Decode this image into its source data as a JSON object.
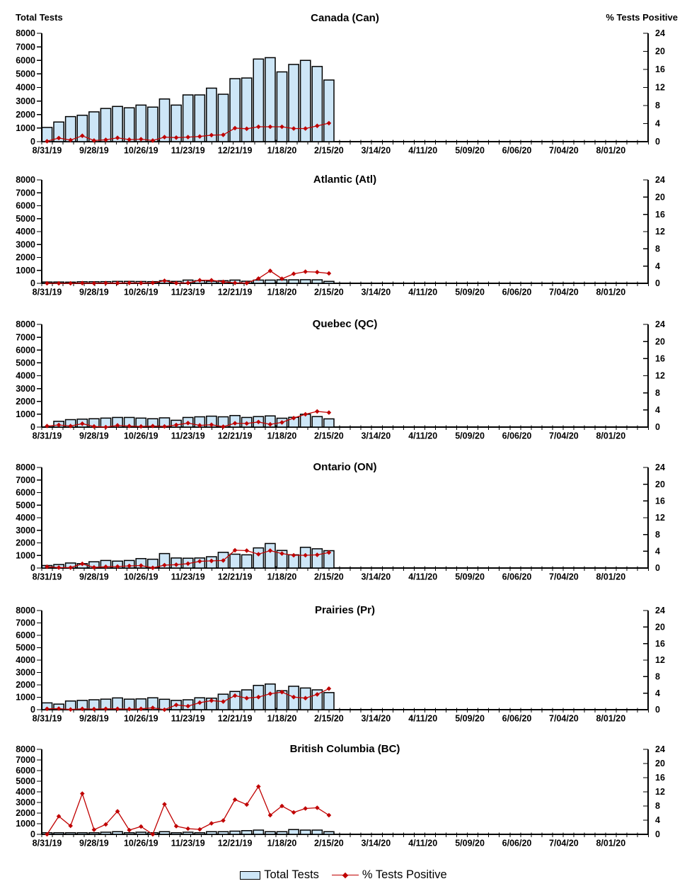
{
  "axes": {
    "left_title": "Total Tests",
    "right_title": "% Tests Positive",
    "left_ticks": [
      "8000",
      "7000",
      "6000",
      "5000",
      "4000",
      "3000",
      "2000",
      "1000",
      "0"
    ],
    "right_ticks": [
      "24",
      "20",
      "16",
      "12",
      "8",
      "4",
      "0"
    ],
    "x_tick_labels": [
      "8/31/19",
      "9/28/19",
      "10/26/19",
      "11/23/19",
      "12/21/19",
      "1/18/20",
      "2/15/20",
      "3/14/20",
      "4/11/20",
      "5/09/20",
      "6/06/20",
      "7/04/20",
      "8/01/20"
    ],
    "left_max": 8000,
    "right_max": 24
  },
  "legend": {
    "bar_label": "Total Tests",
    "line_label": "% Tests Positive"
  },
  "colors": {
    "bar_fill": "#CDE6F7",
    "bar_stroke": "#000000",
    "line": "#C00000",
    "text": "#000000"
  },
  "chart_data": {
    "type": "combo_bar_line",
    "x_is_weekly": true,
    "categories": [
      "8/31/19",
      "9/07/19",
      "9/14/19",
      "9/21/19",
      "9/28/19",
      "10/05/19",
      "10/12/19",
      "10/19/19",
      "10/26/19",
      "11/02/19",
      "11/09/19",
      "11/16/19",
      "11/23/19",
      "11/30/19",
      "12/07/19",
      "12/14/19",
      "12/21/19",
      "12/28/19",
      "1/04/20",
      "1/11/20",
      "1/18/20",
      "1/25/20",
      "2/01/20",
      "2/08/20",
      "2/15/20"
    ],
    "left_series_name": "Total Tests",
    "right_series_name": "% Tests Positive",
    "left_ylim": [
      0,
      8000
    ],
    "right_ylim": [
      0,
      24
    ],
    "charts": [
      {
        "title": "Canada (Can)",
        "total_tests": [
          1050,
          1450,
          1850,
          1950,
          2200,
          2450,
          2600,
          2500,
          2700,
          2550,
          3150,
          2700,
          3450,
          3450,
          3950,
          3500,
          4650,
          4700,
          6100,
          6200,
          5150,
          5700,
          6000,
          5550,
          4550
        ],
        "pct_positive": [
          0.1,
          0.8,
          0.35,
          1.3,
          0.25,
          0.4,
          0.85,
          0.45,
          0.55,
          0.25,
          1.0,
          0.9,
          1.0,
          1.15,
          1.45,
          1.5,
          3.0,
          2.85,
          3.3,
          3.3,
          3.3,
          2.9,
          2.9,
          3.5,
          4.1
        ]
      },
      {
        "title": "Atlantic (Atl)",
        "total_tests": [
          100,
          100,
          90,
          120,
          120,
          130,
          150,
          150,
          140,
          130,
          200,
          150,
          250,
          200,
          160,
          200,
          250,
          160,
          250,
          250,
          270,
          270,
          280,
          270,
          150
        ],
        "pct_positive": [
          0,
          0,
          0,
          0.05,
          0,
          0.05,
          0.05,
          0.1,
          0.05,
          0.1,
          0.6,
          0.05,
          0.1,
          0.7,
          0.7,
          0.35,
          0.1,
          0.05,
          1.1,
          2.9,
          1.05,
          2.2,
          2.7,
          2.6,
          2.3
        ]
      },
      {
        "title": "Quebec (QC)",
        "total_tests": [
          0,
          450,
          580,
          620,
          650,
          700,
          750,
          750,
          700,
          650,
          720,
          530,
          750,
          800,
          850,
          800,
          900,
          750,
          820,
          870,
          690,
          760,
          1000,
          820,
          640
        ],
        "pct_positive": [
          0.25,
          0.5,
          0.25,
          0.8,
          0.15,
          0,
          0.4,
          0.25,
          0.15,
          0.25,
          0.15,
          0.5,
          0.95,
          0.4,
          0.55,
          0.1,
          0.9,
          0.85,
          1.2,
          0.65,
          1.1,
          2.1,
          3.0,
          3.65,
          3.4
        ]
      },
      {
        "title": "Ontario (ON)",
        "total_tests": [
          200,
          280,
          400,
          350,
          500,
          600,
          550,
          600,
          750,
          700,
          1150,
          800,
          780,
          800,
          900,
          1250,
          1100,
          1050,
          1600,
          1950,
          1400,
          1050,
          1650,
          1530,
          1380
        ],
        "pct_positive": [
          0.3,
          0.1,
          0.1,
          1.0,
          0.15,
          0.3,
          0.35,
          0.5,
          0.6,
          0.05,
          0.7,
          0.8,
          1.05,
          1.6,
          1.7,
          1.8,
          4.25,
          4.15,
          3.3,
          4.15,
          3.45,
          3.05,
          3.05,
          3.15,
          3.7
        ]
      },
      {
        "title": "Prairies (Pr)",
        "total_tests": [
          550,
          450,
          700,
          750,
          800,
          850,
          950,
          850,
          870,
          960,
          840,
          750,
          800,
          960,
          930,
          1250,
          1470,
          1600,
          1960,
          2070,
          1530,
          1890,
          1750,
          1600,
          1380
        ],
        "pct_positive": [
          0.2,
          0.25,
          0.05,
          0.2,
          0.15,
          0.2,
          0.2,
          0.16,
          0.2,
          0.45,
          0,
          1.15,
          0.85,
          1.7,
          2.2,
          1.95,
          3.4,
          2.8,
          3.05,
          3.85,
          4.25,
          3.05,
          2.8,
          3.7,
          5.1
        ]
      },
      {
        "title": "British Columbia (BC)",
        "total_tests": [
          150,
          150,
          150,
          150,
          150,
          200,
          250,
          150,
          200,
          150,
          250,
          150,
          200,
          150,
          250,
          250,
          300,
          350,
          400,
          250,
          250,
          450,
          400,
          400,
          250
        ],
        "pct_positive": [
          0,
          5.1,
          2.4,
          11.5,
          1.3,
          2.8,
          6.5,
          1.2,
          2.2,
          0,
          8.5,
          2.3,
          1.6,
          1.4,
          3.1,
          3.9,
          9.8,
          8.4,
          13.5,
          5.4,
          8.0,
          6.2,
          7.3,
          7.5,
          5.4
        ]
      }
    ]
  }
}
